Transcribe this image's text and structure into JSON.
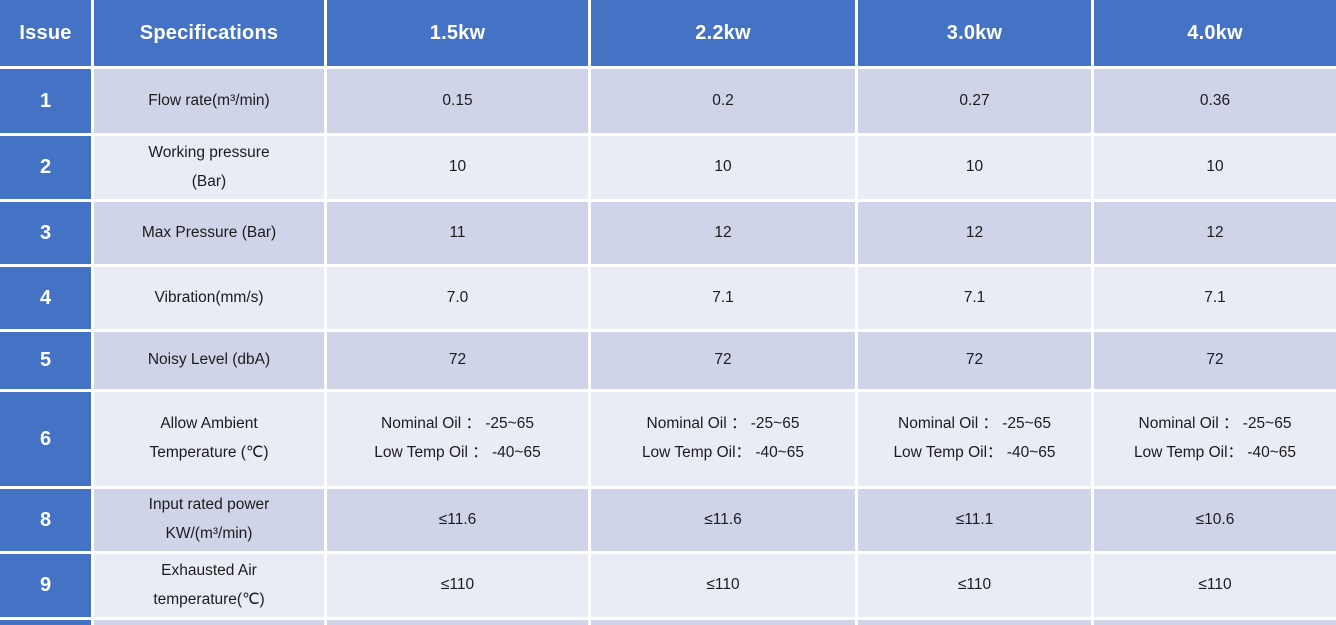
{
  "colors": {
    "header_blue": "#4472c4",
    "band_dark": "#cfd4e9",
    "band_light": "#e9ebf5",
    "gap_white": "#ffffff",
    "body_text": "#1c1c1c"
  },
  "header": {
    "issue": "Issue",
    "specifications": "Specifications",
    "columns": [
      "1.5kw",
      "2.2kw",
      "3.0kw",
      "4.0kw"
    ]
  },
  "rows": [
    {
      "issue": "1",
      "band": "dark",
      "spec": [
        "Flow rate(m³/min)"
      ],
      "values": [
        [
          "0.15"
        ],
        [
          "0.2"
        ],
        [
          "0.27"
        ],
        [
          "0.36"
        ]
      ]
    },
    {
      "issue": "2",
      "band": "light",
      "spec": [
        "Working pressure",
        "(Bar)"
      ],
      "values": [
        [
          "10"
        ],
        [
          "10"
        ],
        [
          "10"
        ],
        [
          "10"
        ]
      ]
    },
    {
      "issue": "3",
      "band": "dark",
      "spec": [
        "Max Pressure (Bar)"
      ],
      "values": [
        [
          "11"
        ],
        [
          "12"
        ],
        [
          "12"
        ],
        [
          "12"
        ]
      ]
    },
    {
      "issue": "4",
      "band": "light",
      "spec": [
        "Vibration(mm/s)"
      ],
      "values": [
        [
          "7.0"
        ],
        [
          "7.1"
        ],
        [
          "7.1"
        ],
        [
          "7.1"
        ]
      ]
    },
    {
      "issue": "5",
      "band": "dark",
      "spec": [
        "Noisy Level (dbA)"
      ],
      "values": [
        [
          "72"
        ],
        [
          "72"
        ],
        [
          "72"
        ],
        [
          "72"
        ]
      ]
    },
    {
      "issue": "6",
      "band": "light",
      "spec": [
        "Allow Ambient",
        "Temperature (℃)"
      ],
      "values": [
        [
          "Nominal Oil ： -25~65",
          "Low Temp Oil ： -40~65"
        ],
        [
          "Nominal Oil ： -25~65",
          "Low Temp Oil： -40~65"
        ],
        [
          "Nominal Oil ： -25~65",
          "Low Temp Oil： -40~65"
        ],
        [
          "Nominal Oil ： -25~65",
          "Low Temp Oil： -40~65"
        ]
      ]
    },
    {
      "issue": "8",
      "band": "dark",
      "spec": [
        "Input rated power",
        "KW/(m³/min)"
      ],
      "values": [
        [
          "≤11.6"
        ],
        [
          "≤11.6"
        ],
        [
          "≤11.1"
        ],
        [
          "≤10.6"
        ]
      ]
    },
    {
      "issue": "9",
      "band": "light",
      "spec": [
        "Exhausted Air",
        "temperature(℃)"
      ],
      "values": [
        [
          "≤110"
        ],
        [
          "≤110"
        ],
        [
          "≤110"
        ],
        [
          "≤110"
        ]
      ]
    }
  ]
}
